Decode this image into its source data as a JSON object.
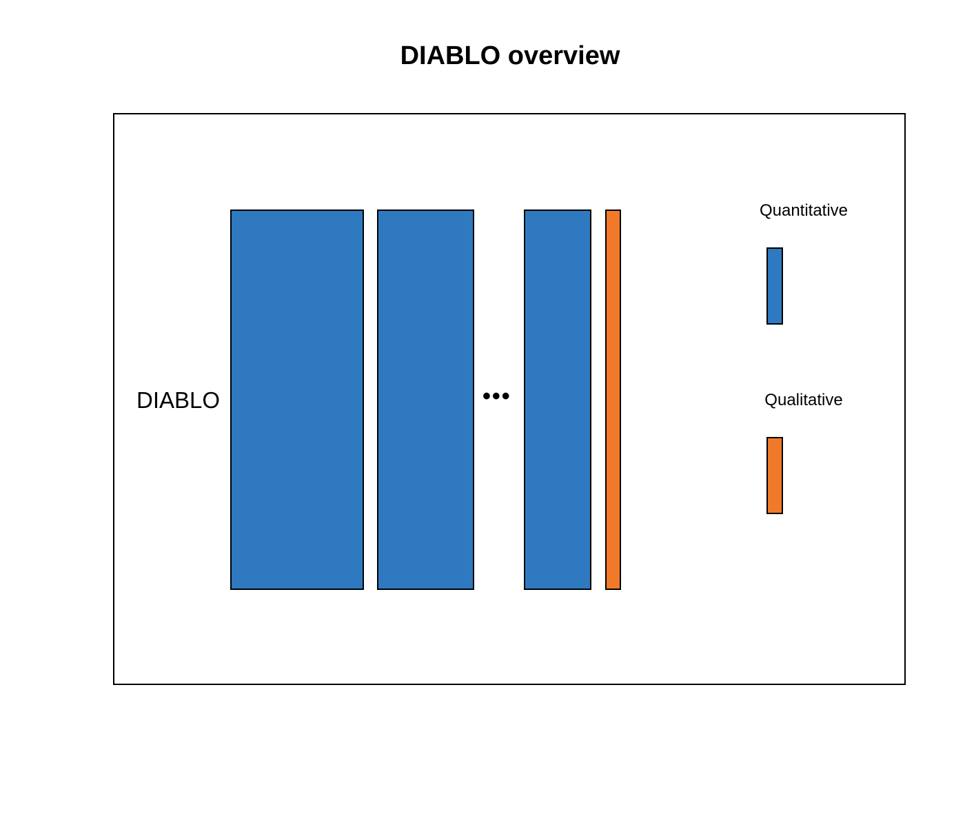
{
  "title": "DIABLO overview",
  "row_label": "DIABLO",
  "ellipsis": "•••",
  "colors": {
    "quantitative": "#2e79bf",
    "qualitative": "#f07a2a",
    "outline": "#000000"
  },
  "blocks": [
    {
      "type": "quantitative"
    },
    {
      "type": "quantitative"
    },
    {
      "type": "quantitative"
    },
    {
      "type": "qualitative"
    }
  ],
  "legend": {
    "quantitative_label": "Quantitative",
    "qualitative_label": "Qualitative"
  }
}
